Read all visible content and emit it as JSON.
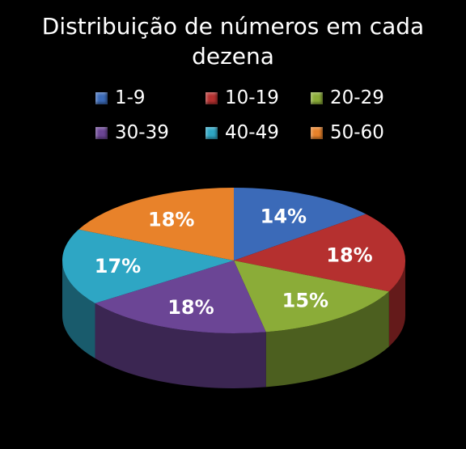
{
  "chart_data": {
    "type": "pie",
    "title": "Distribuição de números em cada dezena",
    "categories": [
      "1-9",
      "10-19",
      "20-29",
      "30-39",
      "40-49",
      "50-60"
    ],
    "values": [
      14,
      18,
      15,
      18,
      17,
      18
    ],
    "labels": [
      "14%",
      "18%",
      "15%",
      "18%",
      "17%",
      "18%"
    ],
    "colors": [
      "#3b6ab8",
      "#b5302f",
      "#8bac38",
      "#6b4595",
      "#2ea6c4",
      "#e8822a"
    ],
    "legend_position": "top",
    "style": "3d"
  }
}
